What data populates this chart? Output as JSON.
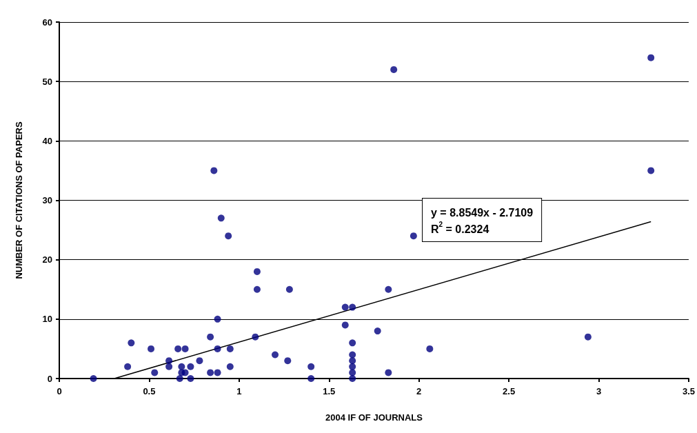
{
  "chart_data": {
    "type": "scatter",
    "xlabel": "2004 IF OF JOURNALS",
    "ylabel": "NUMBER OF CITATIONS OF PAPERS",
    "xlim": [
      0,
      3.5
    ],
    "xticks": [
      0,
      0.5,
      1,
      1.5,
      2,
      2.5,
      3,
      3.5
    ],
    "ylim": [
      0,
      60
    ],
    "yticks": [
      0,
      10,
      20,
      30,
      40,
      50,
      60
    ],
    "grid": "y",
    "marker": "circle",
    "annotations": [
      "y = 8.8549x - 2.7109",
      "R$^{2}$ = 0.2324"
    ],
    "series": [
      {
        "color": "#000080",
        "x": [
          0.19,
          0.38,
          0.4,
          0.51,
          0.53,
          0.61,
          0.61,
          0.66,
          0.7,
          0.68,
          0.68,
          0.67,
          0.7,
          0.73,
          0.73,
          0.78,
          0.84,
          0.84,
          0.88,
          0.88,
          0.88,
          0.95,
          0.95,
          1.09,
          1.1,
          1.28,
          1.2,
          1.27,
          1.4,
          1.4,
          1.59,
          1.63,
          1.59,
          1.63,
          1.63,
          1.63,
          1.63,
          1.63,
          1.63,
          1.83,
          1.77,
          1.83,
          2.06,
          0.86,
          0.9,
          0.94,
          1.1,
          1.86,
          1.97,
          3.29,
          3.29,
          2.94
        ],
        "values": [
          0,
          2,
          6,
          5,
          1,
          3,
          2,
          5,
          5,
          2,
          1,
          0,
          1,
          2,
          0,
          3,
          7,
          1,
          1,
          10,
          5,
          5,
          2,
          7,
          15,
          15,
          4,
          3,
          2,
          0,
          12,
          12,
          9,
          6,
          4,
          3,
          2,
          1,
          0,
          15,
          8,
          1,
          5,
          35,
          27,
          24,
          18,
          52,
          24,
          54,
          35,
          7
        ]
      },
      {
        "type": "line",
        "marker": "none",
        "color": "#000000",
        "x": [
          0.306,
          3.29
        ],
        "values": [
          0,
          26.4
        ]
      }
    ]
  }
}
